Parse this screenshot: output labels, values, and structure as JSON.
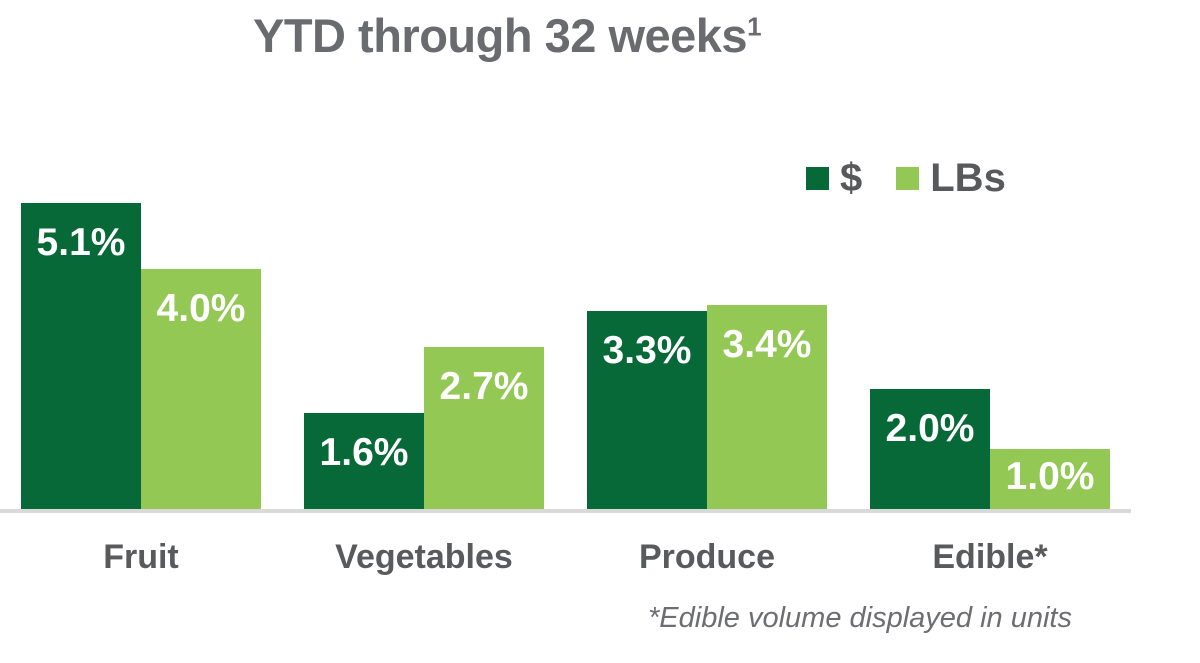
{
  "title": {
    "text": "YTD through 32 weeks",
    "superscript": "1"
  },
  "legend": [
    {
      "label": "$",
      "color": "#076937",
      "key": "dollars"
    },
    {
      "label": "LBs",
      "color": "#92C853",
      "key": "lbs"
    }
  ],
  "footnote": "*Edible volume displayed in units",
  "colors": {
    "dark_green": "#076937",
    "light_green": "#92C853",
    "title_gray": "#6A6B6E",
    "label_gray": "#595A5C",
    "axis_gray": "#D9D9D9",
    "value_label": "#FFFFFF"
  },
  "chart_data": {
    "type": "bar",
    "title": "YTD through 32 weeks¹",
    "categories": [
      "Fruit",
      "Vegetables",
      "Produce",
      "Edible*"
    ],
    "series": [
      {
        "name": "$",
        "key": "dollars",
        "color": "#076937",
        "values": [
          5.1,
          1.6,
          3.3,
          2.0
        ],
        "labels": [
          "5.1%",
          "1.6%",
          "3.3%",
          "2.0%"
        ]
      },
      {
        "name": "LBs",
        "key": "lbs",
        "color": "#92C853",
        "values": [
          4.0,
          2.7,
          3.4,
          1.0
        ],
        "labels": [
          "4.0%",
          "2.7%",
          "3.4%",
          "1.0%"
        ]
      }
    ],
    "value_suffix": "%",
    "xlabel": "",
    "ylabel": "",
    "ylim": [
      0,
      5.1
    ],
    "grid": false,
    "axis_ticks_visible": false,
    "legend_position": "top-right",
    "annotations": [
      "*Edible volume displayed in units"
    ]
  }
}
